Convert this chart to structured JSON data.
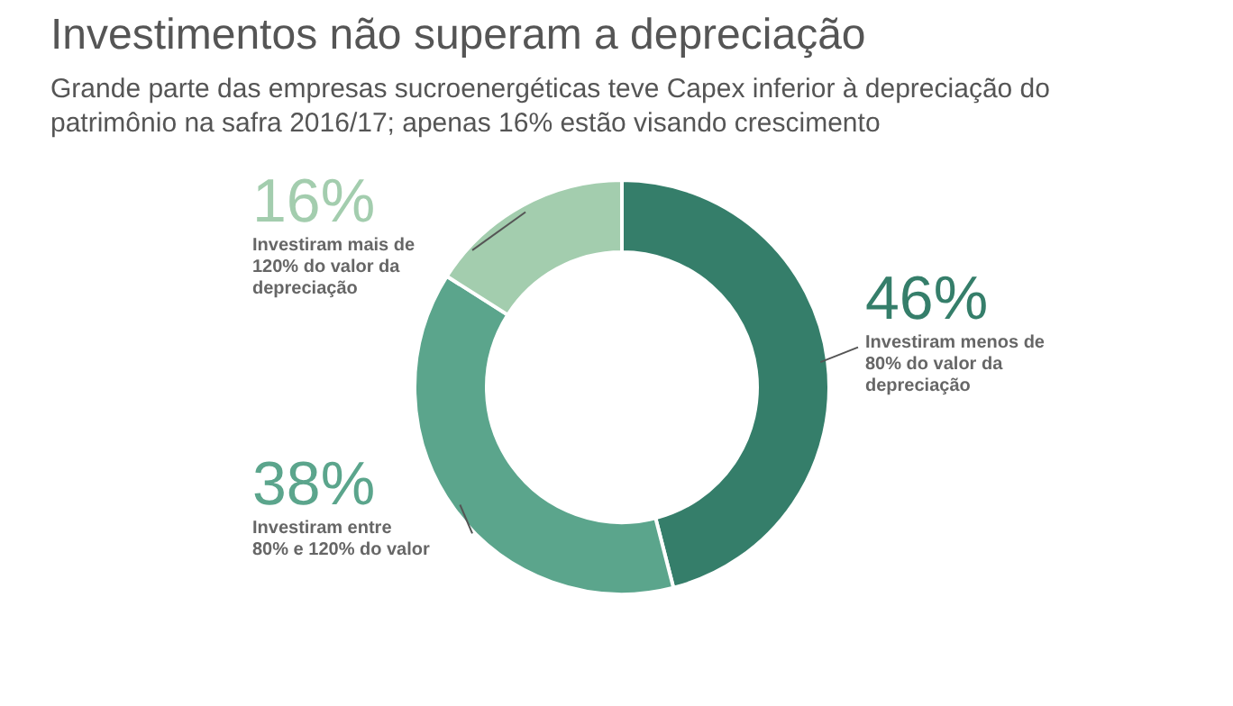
{
  "chart_data": {
    "type": "donut",
    "title": "Investimentos não superam a depreciação",
    "subtitle": "Grande parte das empresas sucroenergéticas teve Capex inferior à depreciação do patrimônio na safra 2016/17; apenas 16% estão visando crescimento",
    "categories": [
      "Investiram menos de 80% do valor da depreciação",
      "Investiram entre 80% e 120% do valor",
      "Investiram mais de 120% do valor da depreciação"
    ],
    "values": [
      46,
      38,
      16
    ],
    "colors": [
      "#357e6a",
      "#5ba58c",
      "#a3cdae"
    ],
    "value_labels": [
      "46%",
      "38%",
      "16%"
    ]
  }
}
